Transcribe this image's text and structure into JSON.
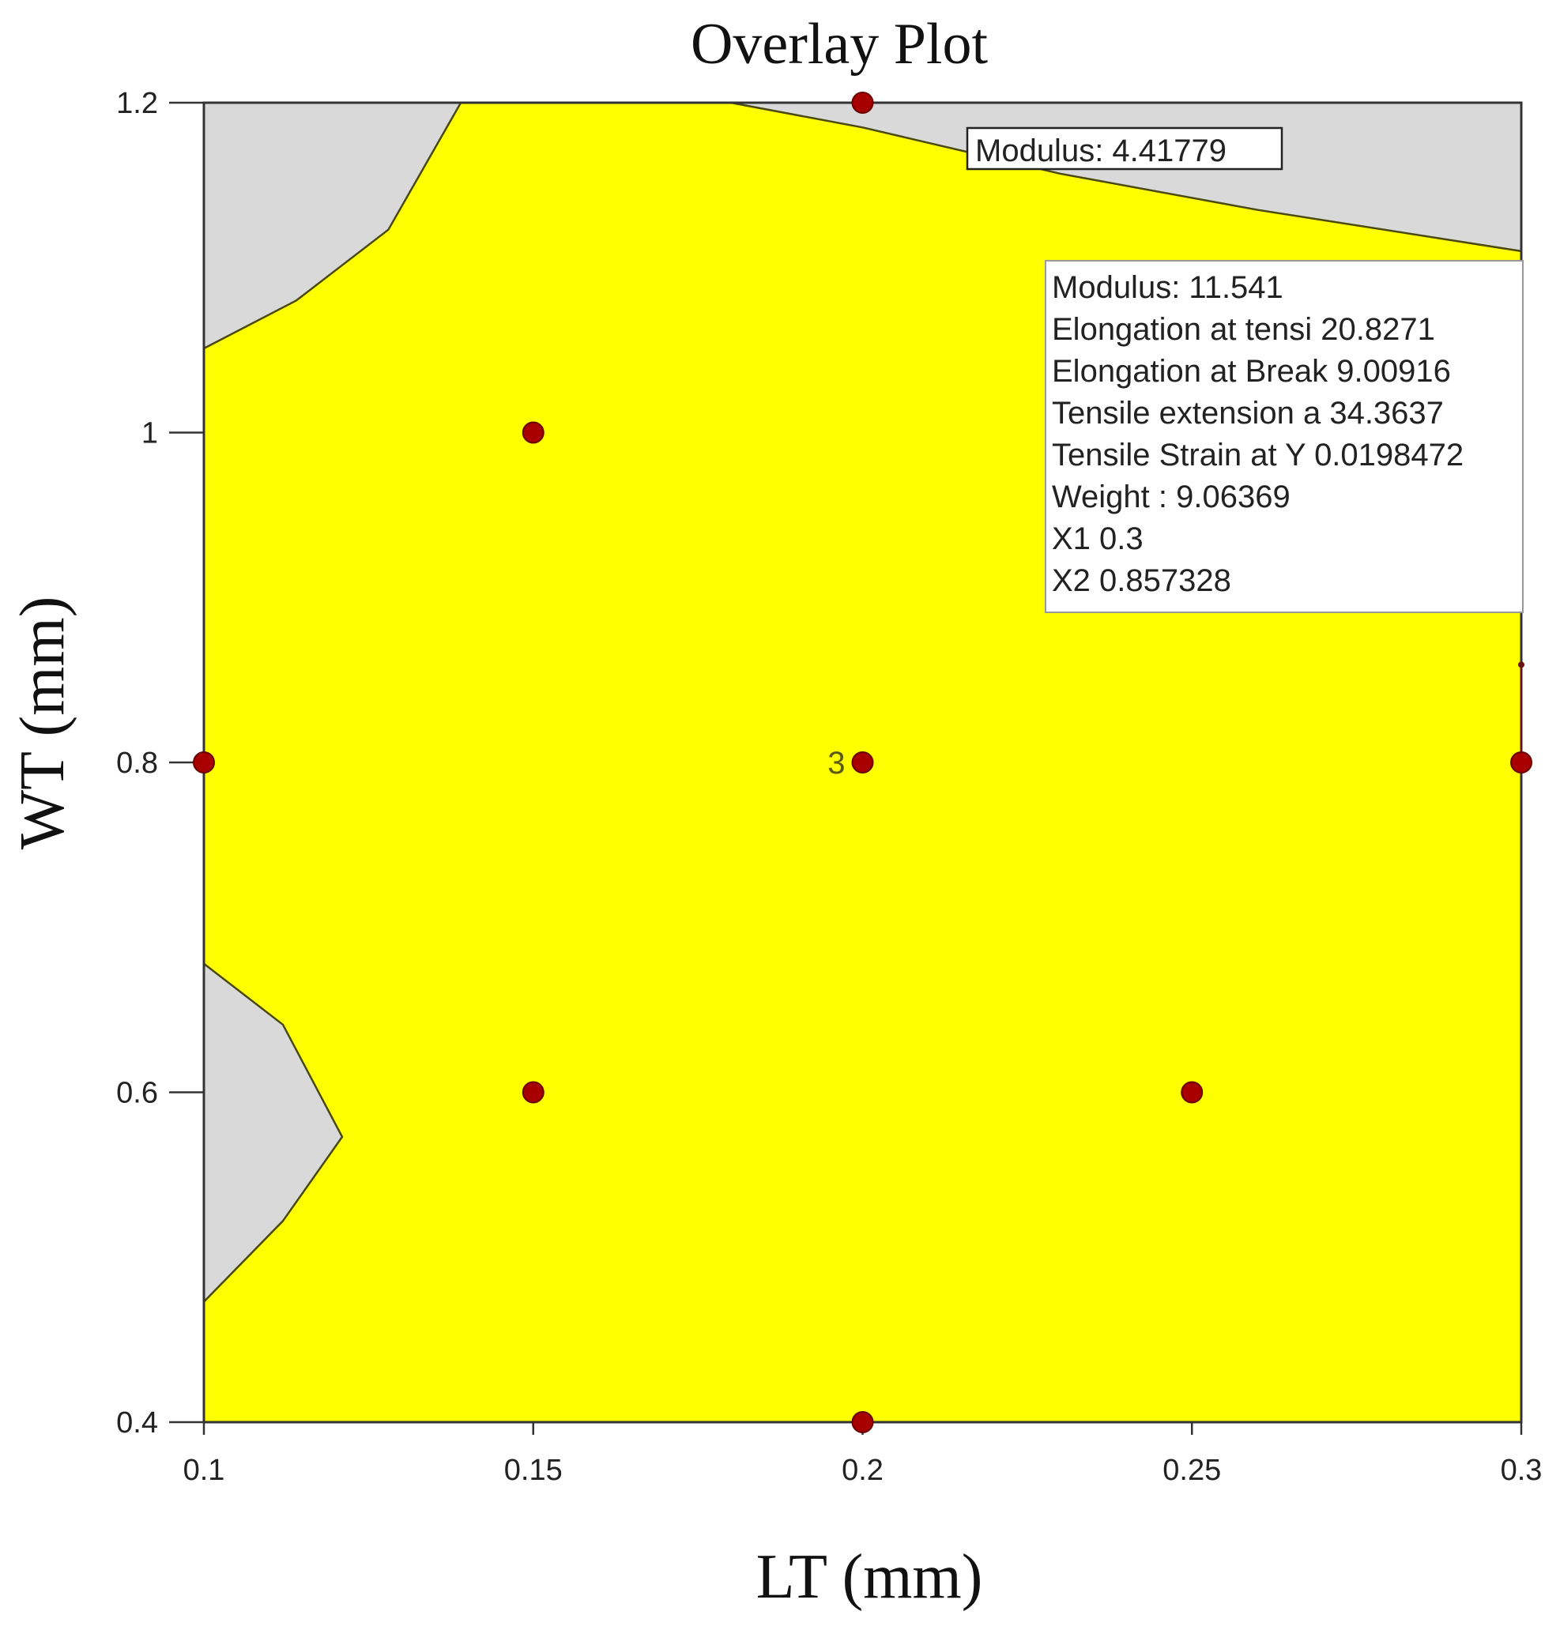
{
  "chart_data": {
    "type": "contour",
    "title": "Overlay Plot",
    "xlabel": "LT (mm)",
    "ylabel": "WT (mm)",
    "xlim": [
      0.1,
      0.3
    ],
    "ylim": [
      0.4,
      1.2
    ],
    "x_ticks": [
      "0.1",
      "0.15",
      "0.2",
      "0.25",
      "0.3"
    ],
    "y_ticks": [
      "0.4",
      "0.6",
      "0.8",
      "1",
      "1.2"
    ],
    "colors": {
      "feasible": "#ffff00",
      "infeasible": "#d9d9d9",
      "points": "#a80000",
      "boundary": "#4a4a10"
    },
    "design_points": [
      {
        "x": 0.2,
        "y": 1.2
      },
      {
        "x": 0.15,
        "y": 1.0
      },
      {
        "x": 0.1,
        "y": 0.8
      },
      {
        "x": 0.2,
        "y": 0.8,
        "label": "3"
      },
      {
        "x": 0.3,
        "y": 0.8
      },
      {
        "x": 0.15,
        "y": 0.6
      },
      {
        "x": 0.25,
        "y": 0.6
      },
      {
        "x": 0.2,
        "y": 0.4
      }
    ],
    "contour_label": "Modulus: 4.41779",
    "regions": [
      {
        "fill": "infeasible",
        "boundary": [
          [
            0.1,
            1.051
          ],
          [
            0.114,
            1.08
          ],
          [
            0.128,
            1.123
          ],
          [
            0.139,
            1.2
          ]
        ]
      },
      {
        "fill": "infeasible",
        "boundary": [
          [
            0.18,
            1.2
          ],
          [
            0.2,
            1.185
          ],
          [
            0.23,
            1.157
          ],
          [
            0.26,
            1.135
          ],
          [
            0.3,
            1.11
          ]
        ]
      },
      {
        "fill": "infeasible",
        "boundary": [
          [
            0.1,
            0.678
          ],
          [
            0.112,
            0.641
          ],
          [
            0.121,
            0.573
          ],
          [
            0.112,
            0.522
          ],
          [
            0.1,
            0.473
          ]
        ]
      }
    ],
    "point_info": {
      "lines": [
        {
          "name": "Modulus:",
          "value": "11.541"
        },
        {
          "name": "Elongation at tensi",
          "value": "20.8271"
        },
        {
          "name": "Elongation at Break",
          "value": "9.00916"
        },
        {
          "name": "Tensile extension a",
          "value": "34.3637"
        },
        {
          "name": "Tensile Strain at Y",
          "value": "0.0198472"
        },
        {
          "name": "Weight        :",
          "value": "9.06369"
        },
        {
          "name": "X1",
          "value": "0.3"
        },
        {
          "name": "X2",
          "value": "0.857328"
        }
      ],
      "flag": {
        "x": 0.3,
        "y": 0.857328
      }
    },
    "legend": "none",
    "grid": false
  }
}
